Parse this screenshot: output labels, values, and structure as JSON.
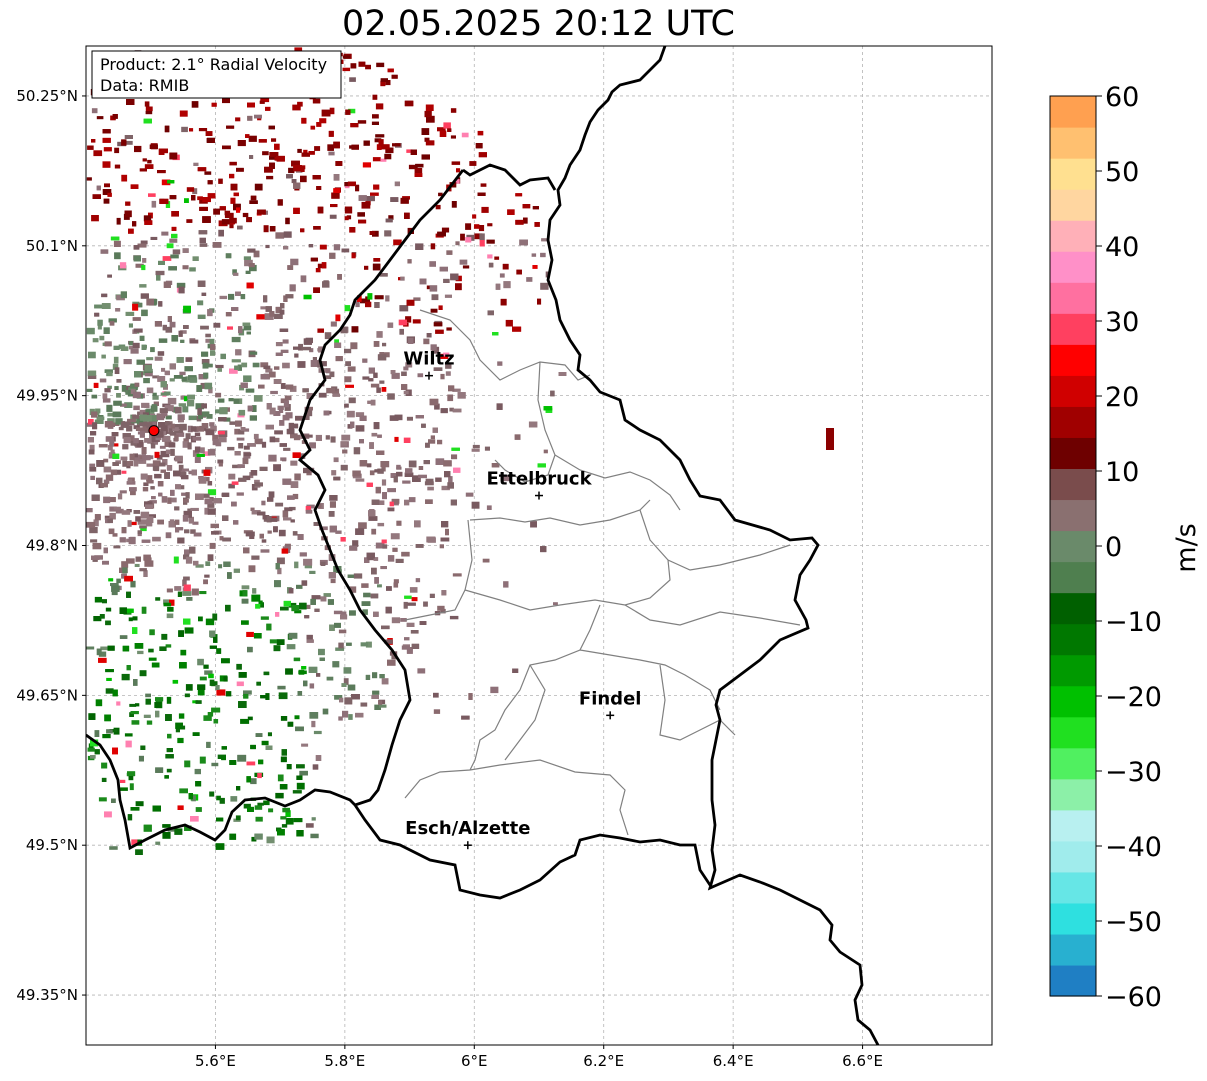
{
  "title": "02.05.2025 20:12 UTC",
  "info_box": {
    "product": "Product: 2.1° Radial Velocity",
    "data": "Data: RMIB"
  },
  "lat_ticks": [
    "50.25°N",
    "50.1°N",
    "49.95°N",
    "49.8°N",
    "49.65°N",
    "49.5°N",
    "49.35°N"
  ],
  "lon_ticks": [
    "5.6°E",
    "5.8°E",
    "6°E",
    "6.2°E",
    "6.4°E",
    "6.6°E"
  ],
  "cities": [
    {
      "name": "Wiltz",
      "lon": 5.93,
      "lat": 49.97
    },
    {
      "name": "Ettelbruck",
      "lon": 6.1,
      "lat": 49.85
    },
    {
      "name": "Findel",
      "lon": 6.21,
      "lat": 49.63
    },
    {
      "name": "Esch/Alzette",
      "lon": 5.99,
      "lat": 49.5
    }
  ],
  "radar_site": {
    "lon": 5.505,
    "lat": 49.915
  },
  "colorbar": {
    "unit": "m/s",
    "ticks": [
      "60",
      "50",
      "40",
      "30",
      "20",
      "10",
      "0",
      "−10",
      "−20",
      "−30",
      "−40",
      "−50",
      "−60"
    ],
    "range": [
      -60,
      60
    ],
    "colors": [
      "#1f7fc4",
      "#28b0d0",
      "#2ee0e0",
      "#66e6e6",
      "#a0ecec",
      "#b8f0f0",
      "#8cf0a8",
      "#50f060",
      "#20e020",
      "#00c000",
      "#009a00",
      "#007800",
      "#006000",
      "#4f7f4f",
      "#6a8a6a",
      "#8a7070",
      "#7a4c4c",
      "#6e0000",
      "#a00000",
      "#d00000",
      "#ff0000",
      "#ff4060",
      "#ff70a0",
      "#ff90c8",
      "#ffb0b8",
      "#ffd6a0",
      "#ffe090",
      "#ffc070",
      "#ffa050"
    ]
  },
  "colors": {
    "border_bold": "#000000",
    "border_thin": "#808080",
    "site_marker": "#ff0000"
  }
}
